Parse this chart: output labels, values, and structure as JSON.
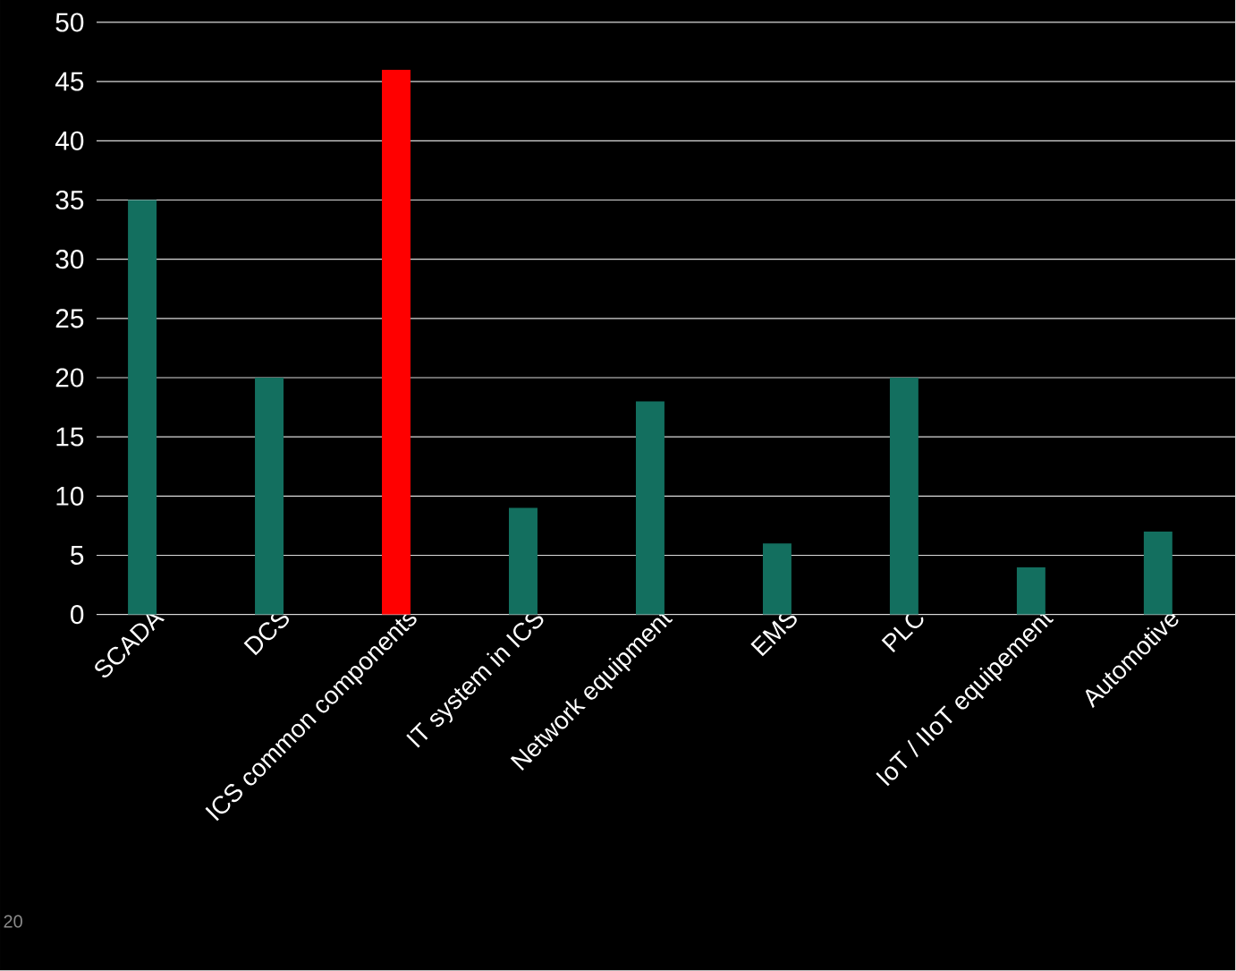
{
  "chart_data": {
    "type": "bar",
    "categories": [
      "SCADA",
      "DCS",
      "ICS common components",
      "IT system in ICS",
      "Network equipment",
      "EMS",
      "PLC",
      "IoT / IIoT equipement",
      "Automotive"
    ],
    "values": [
      35,
      20,
      46,
      9,
      18,
      6,
      20,
      4,
      7
    ],
    "colors": [
      "#136f5f",
      "#136f5f",
      "#ff0000",
      "#136f5f",
      "#136f5f",
      "#136f5f",
      "#136f5f",
      "#136f5f",
      "#136f5f"
    ],
    "ylim": [
      0,
      50
    ],
    "yticks": [
      0,
      5,
      10,
      15,
      20,
      25,
      30,
      35,
      40,
      45,
      50
    ],
    "grid": "y",
    "annotations": [
      "20"
    ]
  }
}
